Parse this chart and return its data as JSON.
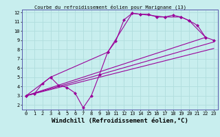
{
  "title": "Courbe du refroidissement éolien pour Marignane (13)",
  "xlabel": "Windchill (Refroidissement éolien,°C)",
  "bg_color": "#c8eeee",
  "grid_color": "#b0dddd",
  "line_color": "#990099",
  "spine_color": "#7777bb",
  "xlim": [
    -0.5,
    23.5
  ],
  "ylim": [
    1.5,
    12.3
  ],
  "xticks": [
    0,
    1,
    2,
    3,
    4,
    5,
    6,
    7,
    8,
    9,
    10,
    11,
    12,
    13,
    14,
    15,
    16,
    17,
    18,
    19,
    20,
    21,
    22,
    23
  ],
  "yticks": [
    2,
    3,
    4,
    5,
    6,
    7,
    8,
    9,
    10,
    11,
    12
  ],
  "series": {
    "line1": {
      "x": [
        0,
        1,
        2,
        3,
        4,
        5,
        6,
        7,
        8,
        9,
        10,
        11,
        12,
        13,
        14,
        15,
        16,
        17,
        18,
        19,
        20,
        21,
        22
      ],
      "y": [
        3.0,
        3.2,
        4.3,
        5.0,
        4.1,
        3.9,
        3.3,
        1.7,
        3.0,
        5.3,
        7.7,
        8.9,
        11.2,
        11.9,
        11.8,
        11.8,
        11.5,
        11.5,
        11.7,
        11.5,
        11.1,
        10.6,
        9.3
      ]
    },
    "line2": {
      "x": [
        0,
        3,
        10,
        13,
        14,
        17,
        19,
        20,
        22,
        23
      ],
      "y": [
        3.0,
        5.0,
        7.7,
        11.9,
        11.8,
        11.5,
        11.5,
        11.1,
        9.3,
        9.0
      ]
    },
    "line3": {
      "x": [
        0,
        22
      ],
      "y": [
        3.0,
        9.3
      ]
    },
    "line4": {
      "x": [
        0,
        23
      ],
      "y": [
        3.0,
        8.8
      ]
    },
    "line5": {
      "x": [
        0,
        23
      ],
      "y": [
        3.0,
        8.1
      ]
    }
  },
  "marker": "D",
  "markersize": 2,
  "linewidth": 0.8,
  "tick_fontsize": 5,
  "label_fontsize": 6.5
}
